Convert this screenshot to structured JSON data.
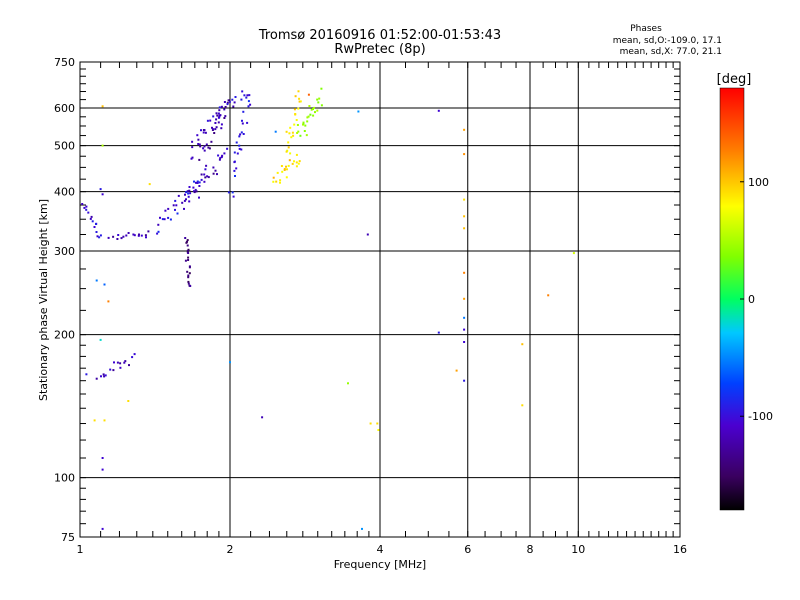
{
  "chart_data": {
    "type": "scatter",
    "title": "Tromsø 20160916 01:52:00-01:53:43",
    "subtitle": "RwPretec (8p)",
    "xlabel": "Frequency [MHz]",
    "ylabel": "Stationary phase Virtual Height [km]",
    "x_scale": "log",
    "y_scale": "log",
    "xlim": [
      1,
      16
    ],
    "ylim": [
      75,
      750
    ],
    "x_ticks": [
      1,
      2,
      4,
      6,
      8,
      10,
      16
    ],
    "y_ticks": [
      75,
      100,
      200,
      300,
      400,
      500,
      600,
      750
    ],
    "grid": true,
    "stats": {
      "heading": "Phases",
      "o_line": "mean, sd,O:-109.0, 17.1",
      "x_line": "mean, sd,X:  77.0, 21.1"
    },
    "colorbar": {
      "label": "[deg]",
      "ticks": [
        100,
        0,
        -100
      ],
      "range": [
        -180,
        180
      ]
    },
    "trace_segments": [
      {
        "from": [
          1.02,
          370
        ],
        "to": [
          1.1,
          320
        ],
        "phase": -110,
        "count": 14,
        "spread_f": 0.01,
        "spread_h": 8
      },
      {
        "from": [
          1.15,
          322
        ],
        "to": [
          1.38,
          325
        ],
        "phase": -120,
        "count": 16,
        "spread_f": 0.01,
        "spread_h": 5
      },
      {
        "from": [
          1.42,
          335
        ],
        "to": [
          1.75,
          420
        ],
        "phase": -105,
        "count": 30,
        "spread_f": 0.03,
        "spread_h": 12
      },
      {
        "from": [
          1.62,
          380
        ],
        "to": [
          1.95,
          480
        ],
        "phase": -120,
        "count": 32,
        "spread_f": 0.03,
        "spread_h": 18
      },
      {
        "from": [
          1.68,
          470
        ],
        "to": [
          1.95,
          600
        ],
        "phase": -125,
        "count": 36,
        "spread_f": 0.05,
        "spread_h": 25
      },
      {
        "from": [
          1.75,
          540
        ],
        "to": [
          2.15,
          640
        ],
        "phase": -110,
        "count": 28,
        "spread_f": 0.05,
        "spread_h": 15
      },
      {
        "from": [
          2.0,
          400
        ],
        "to": [
          2.18,
          620
        ],
        "phase": -100,
        "count": 26,
        "spread_f": 0.04,
        "spread_h": 20
      },
      {
        "from": [
          1.63,
          320
        ],
        "to": [
          1.66,
          250
        ],
        "phase": -140,
        "count": 22,
        "spread_f": 0.015,
        "spread_h": 4
      },
      {
        "from": [
          2.45,
          420
        ],
        "to": [
          2.75,
          470
        ],
        "phase": 110,
        "count": 22,
        "spread_f": 0.04,
        "spread_h": 12
      },
      {
        "from": [
          2.6,
          480
        ],
        "to": [
          2.75,
          640
        ],
        "phase": 105,
        "count": 22,
        "spread_f": 0.04,
        "spread_h": 20
      },
      {
        "from": [
          2.75,
          520
        ],
        "to": [
          3.05,
          640
        ],
        "phase": 50,
        "count": 26,
        "spread_f": 0.05,
        "spread_h": 20
      },
      {
        "from": [
          1.08,
          160
        ],
        "to": [
          1.28,
          180
        ],
        "phase": -115,
        "count": 16,
        "spread_f": 0.01,
        "spread_h": 6
      }
    ],
    "points": [
      {
        "x": 1.11,
        "y": 605,
        "phase": 120
      },
      {
        "x": 1.11,
        "y": 500,
        "phase": 60
      },
      {
        "x": 1.1,
        "y": 405,
        "phase": -100
      },
      {
        "x": 1.11,
        "y": 395,
        "phase": -110
      },
      {
        "x": 1.08,
        "y": 260,
        "phase": -60
      },
      {
        "x": 1.12,
        "y": 255,
        "phase": -70
      },
      {
        "x": 1.14,
        "y": 235,
        "phase": 140
      },
      {
        "x": 1.1,
        "y": 195,
        "phase": -20
      },
      {
        "x": 1.03,
        "y": 165,
        "phase": -100
      },
      {
        "x": 1.07,
        "y": 132,
        "phase": 110
      },
      {
        "x": 1.12,
        "y": 132,
        "phase": 110
      },
      {
        "x": 1.11,
        "y": 110,
        "phase": -110
      },
      {
        "x": 1.11,
        "y": 104,
        "phase": -110
      },
      {
        "x": 1.11,
        "y": 78,
        "phase": -110
      },
      {
        "x": 1.03,
        "y": 372,
        "phase": -110
      },
      {
        "x": 1.25,
        "y": 145,
        "phase": 110
      },
      {
        "x": 1.38,
        "y": 415,
        "phase": 110
      },
      {
        "x": 2.0,
        "y": 175,
        "phase": -50
      },
      {
        "x": 2.32,
        "y": 134,
        "phase": -120
      },
      {
        "x": 2.47,
        "y": 535,
        "phase": -60
      },
      {
        "x": 2.88,
        "y": 640,
        "phase": 150
      },
      {
        "x": 3.45,
        "y": 158,
        "phase": 50
      },
      {
        "x": 3.62,
        "y": 590,
        "phase": -50
      },
      {
        "x": 3.68,
        "y": 78,
        "phase": -50
      },
      {
        "x": 3.78,
        "y": 325,
        "phase": -120
      },
      {
        "x": 3.83,
        "y": 130,
        "phase": 110
      },
      {
        "x": 3.95,
        "y": 130,
        "phase": 110
      },
      {
        "x": 3.97,
        "y": 126,
        "phase": 100
      },
      {
        "x": 5.25,
        "y": 592,
        "phase": -110
      },
      {
        "x": 5.25,
        "y": 202,
        "phase": -100
      },
      {
        "x": 5.7,
        "y": 168,
        "phase": 130
      },
      {
        "x": 5.9,
        "y": 540,
        "phase": 130
      },
      {
        "x": 5.9,
        "y": 480,
        "phase": 135
      },
      {
        "x": 5.9,
        "y": 385,
        "phase": 110
      },
      {
        "x": 5.9,
        "y": 355,
        "phase": 120
      },
      {
        "x": 5.9,
        "y": 335,
        "phase": 120
      },
      {
        "x": 5.9,
        "y": 270,
        "phase": 140
      },
      {
        "x": 5.9,
        "y": 238,
        "phase": 130
      },
      {
        "x": 5.9,
        "y": 217,
        "phase": -60
      },
      {
        "x": 5.9,
        "y": 205,
        "phase": -110
      },
      {
        "x": 5.9,
        "y": 193,
        "phase": -110
      },
      {
        "x": 5.9,
        "y": 160,
        "phase": -100
      },
      {
        "x": 7.72,
        "y": 191,
        "phase": 120
      },
      {
        "x": 7.72,
        "y": 142,
        "phase": 110
      },
      {
        "x": 8.7,
        "y": 242,
        "phase": 140
      },
      {
        "x": 9.8,
        "y": 297,
        "phase": 80
      }
    ]
  }
}
